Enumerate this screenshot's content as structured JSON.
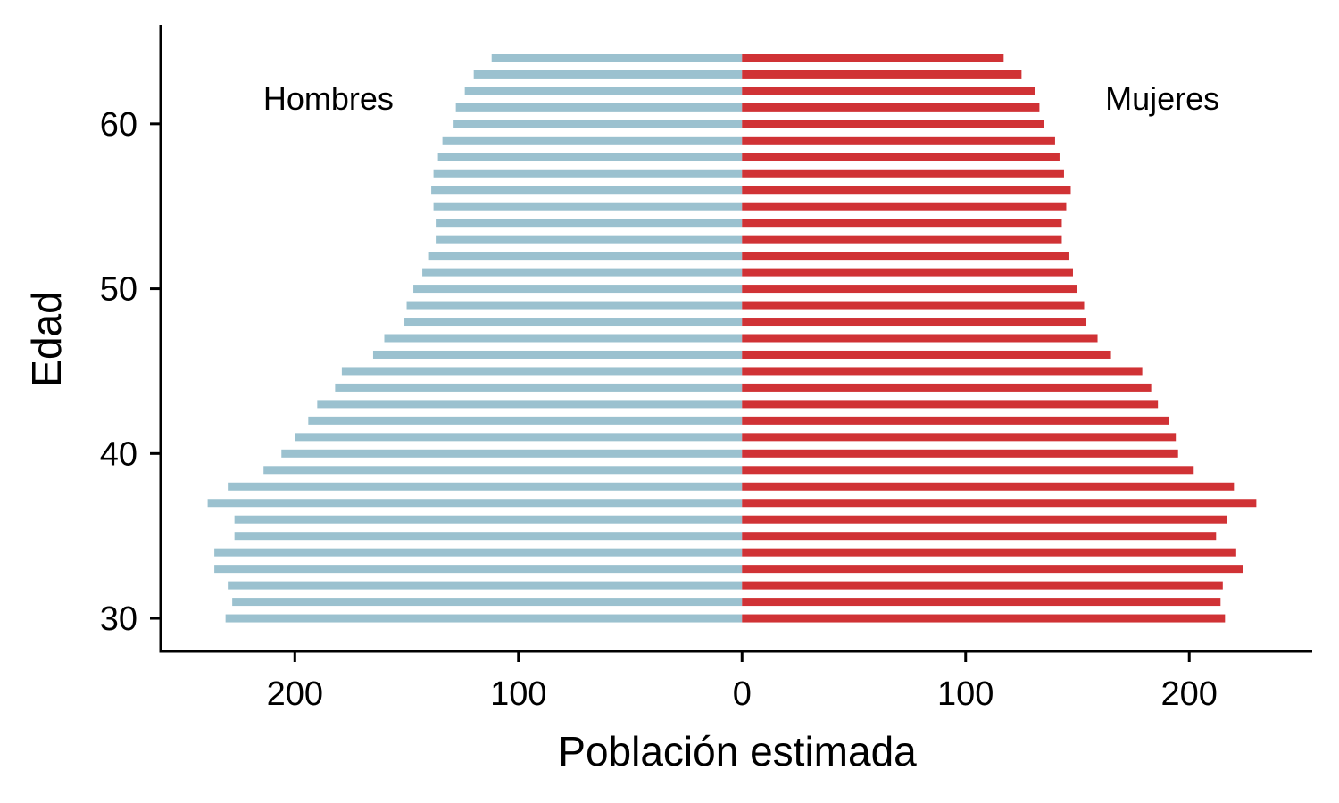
{
  "chart_data": {
    "type": "bar",
    "orientation": "horizontal",
    "layout": "population-pyramid",
    "xlabel": "Población estimada",
    "ylabel": "Edad",
    "xlim": [
      -260,
      255
    ],
    "ylim": [
      28,
      66
    ],
    "x_ticks": [
      {
        "value": -200,
        "label": "200"
      },
      {
        "value": -100,
        "label": "100"
      },
      {
        "value": 0,
        "label": "0"
      },
      {
        "value": 100,
        "label": "100"
      },
      {
        "value": 200,
        "label": "200"
      }
    ],
    "y_ticks": [
      {
        "value": 30,
        "label": "30"
      },
      {
        "value": 40,
        "label": "40"
      },
      {
        "value": 50,
        "label": "50"
      },
      {
        "value": 60,
        "label": "60"
      }
    ],
    "ages": [
      30,
      31,
      32,
      33,
      34,
      35,
      36,
      37,
      38,
      39,
      40,
      41,
      42,
      43,
      44,
      45,
      46,
      47,
      48,
      49,
      50,
      51,
      52,
      53,
      54,
      55,
      56,
      57,
      58,
      59,
      60,
      61,
      62,
      63,
      64
    ],
    "series": [
      {
        "name": "Hombres",
        "side": "left",
        "color": "#9bc1cf",
        "values": [
          231,
          228,
          230,
          236,
          236,
          227,
          227,
          239,
          230,
          214,
          206,
          200,
          194,
          190,
          182,
          179,
          165,
          160,
          151,
          150,
          147,
          143,
          140,
          137,
          137,
          138,
          139,
          138,
          136,
          134,
          129,
          128,
          124,
          120,
          112
        ]
      },
      {
        "name": "Mujeres",
        "side": "right",
        "color": "#d03235",
        "values": [
          216,
          214,
          215,
          224,
          221,
          212,
          217,
          230,
          220,
          202,
          195,
          194,
          191,
          186,
          183,
          179,
          165,
          159,
          154,
          153,
          150,
          148,
          146,
          143,
          143,
          145,
          147,
          144,
          142,
          140,
          135,
          133,
          131,
          125,
          117
        ]
      }
    ],
    "annotations": [
      {
        "text": "Hombres",
        "x": -185,
        "y": 61.5
      },
      {
        "text": "Mujeres",
        "x": 188,
        "y": 61.5
      }
    ],
    "grid": false,
    "legend": "none"
  }
}
